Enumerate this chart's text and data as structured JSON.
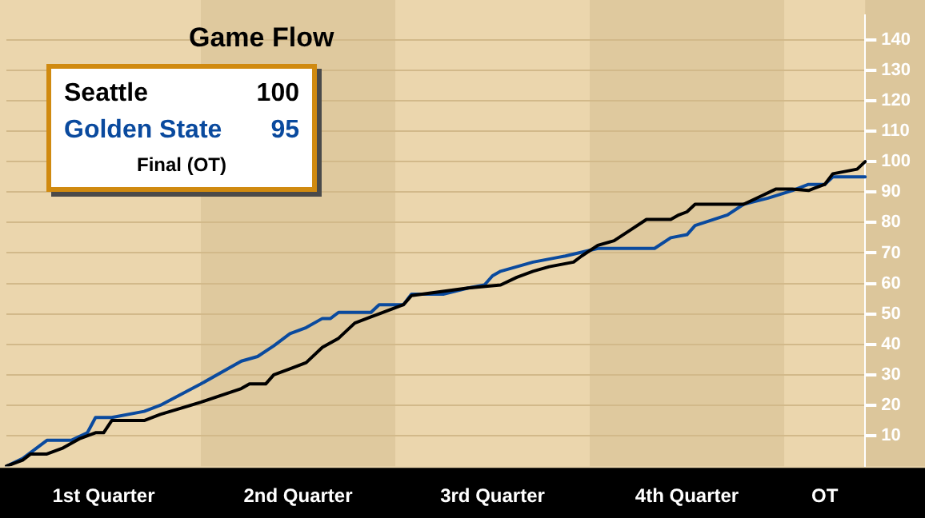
{
  "chart_data": {
    "type": "line",
    "title": "Game Flow",
    "annotations": [
      "100",
      "95",
      "Final (OT)"
    ],
    "legend": "top left",
    "marker": "none",
    "grid": "y",
    "categories": [
      null,
      null,
      null,
      null,
      null,
      null,
      null,
      null,
      null,
      null,
      null,
      null,
      "1st Quarter",
      null,
      null,
      null,
      null,
      null,
      null,
      null,
      null,
      null,
      null,
      null,
      null,
      null,
      null,
      null,
      null,
      null,
      null,
      null,
      null,
      null,
      null,
      null,
      "2nd Quarter",
      null,
      null,
      null,
      null,
      null,
      null,
      null,
      null,
      null,
      null,
      null,
      null,
      null,
      null,
      null,
      null,
      null,
      null,
      null,
      null,
      null,
      null,
      null,
      "3rd Quarter",
      null,
      null,
      null,
      null,
      null,
      null,
      null,
      null,
      null,
      null,
      null,
      null,
      null,
      null,
      null,
      null,
      null,
      null,
      null,
      null,
      null,
      null,
      null,
      "4th Quarter",
      null,
      null,
      null,
      null,
      null,
      null,
      null,
      null,
      null,
      null,
      null,
      null,
      null,
      null,
      null,
      null,
      "OT",
      null,
      null,
      null,
      null,
      null
    ],
    "ylim": [
      0,
      148
    ],
    "yticks": [
      10,
      20,
      30,
      40,
      50,
      60,
      70,
      80,
      90,
      100,
      110,
      120,
      130,
      140
    ],
    "series": [
      {
        "name": "Seattle",
        "color": "#000000",
        "values": [
          0,
          null,
          2,
          4,
          null,
          4,
          null,
          6,
          null,
          9,
          null,
          11,
          11,
          15,
          null,
          null,
          null,
          15,
          null,
          17,
          null,
          null,
          null,
          null,
          21,
          null,
          null,
          null,
          null,
          25.5,
          27,
          null,
          27,
          30,
          null,
          32,
          null,
          34,
          null,
          39,
          null,
          42,
          null,
          47,
          null,
          49,
          50,
          null,
          null,
          53,
          56,
          null,
          null,
          null,
          null,
          null,
          null,
          58.5,
          null,
          null,
          null,
          59.5,
          null,
          62,
          null,
          64,
          null,
          65.5,
          null,
          null,
          67,
          69,
          null,
          72.5,
          null,
          74,
          null,
          77.5,
          null,
          81,
          null,
          null,
          81,
          82.5,
          83.5,
          86,
          null,
          null,
          null,
          null,
          null,
          86,
          null,
          88.5,
          null,
          91,
          null,
          91,
          null,
          90.5,
          null,
          92.5,
          96,
          null,
          null,
          97.5,
          100
        ]
      },
      {
        "name": "Golden State",
        "color": "#0a4a9e",
        "values": [
          0,
          null,
          2.5,
          null,
          null,
          8.5,
          null,
          null,
          8.5,
          null,
          11,
          16,
          null,
          16,
          null,
          null,
          null,
          18,
          null,
          20,
          null,
          null,
          null,
          null,
          27,
          null,
          null,
          null,
          null,
          34.5,
          null,
          36,
          null,
          39.5,
          null,
          43.5,
          null,
          45.5,
          null,
          48.5,
          48.5,
          50.5,
          null,
          null,
          null,
          50.5,
          53,
          null,
          null,
          53,
          56.5,
          null,
          null,
          null,
          56.5,
          null,
          null,
          58.5,
          null,
          59.5,
          62.5,
          64,
          null,
          null,
          null,
          67,
          null,
          null,
          68.5,
          69,
          null,
          null,
          null,
          71.5,
          null,
          null,
          null,
          null,
          null,
          null,
          71.5,
          null,
          75,
          null,
          76,
          79,
          null,
          null,
          null,
          82.5,
          null,
          86,
          null,
          null,
          88,
          null,
          null,
          90.5,
          null,
          92.5,
          null,
          92.5,
          95,
          null,
          null,
          null,
          95
        ]
      }
    ]
  }
}
